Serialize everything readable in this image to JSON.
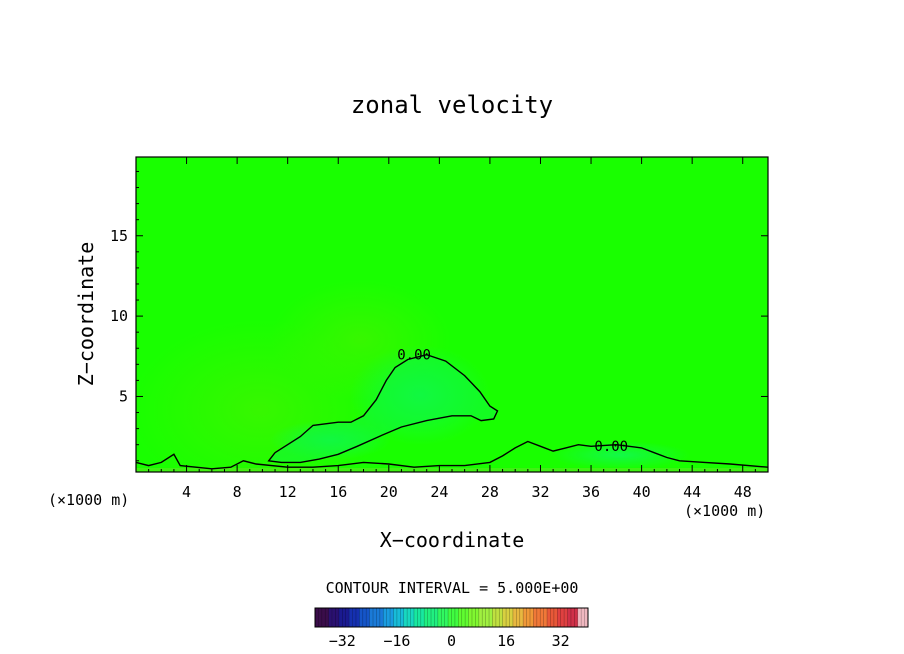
{
  "chart_data": {
    "type": "contour",
    "title": "zonal velocity",
    "xlabel": "X−coordinate",
    "ylabel": "Z−coordinate",
    "x_unit_left": "(×1000 m)",
    "x_unit_right": "(×1000 m)",
    "xlim": [
      0,
      50
    ],
    "ylim": [
      0.3,
      19.9
    ],
    "x_ticks": [
      4,
      8,
      12,
      16,
      20,
      24,
      28,
      32,
      36,
      40,
      44,
      48
    ],
    "x_tick_labels": [
      "4",
      "8",
      "12",
      "16",
      "20",
      "24",
      "28",
      "32",
      "36",
      "40",
      "44",
      "48"
    ],
    "y_ticks": [
      5,
      10,
      15
    ],
    "y_tick_labels": [
      "5",
      "10",
      "15"
    ],
    "contour_interval_text": "CONTOUR INTERVAL = 5.000E+00",
    "contour_labels": [
      {
        "text": "0.00",
        "x": 22,
        "z": 7.3
      },
      {
        "text": "0.00",
        "x": 37.6,
        "z": 1.6
      }
    ],
    "zero_contour_upper": [
      [
        11,
        1.5
      ],
      [
        13,
        2.5
      ],
      [
        14,
        3.2
      ],
      [
        16,
        3.4
      ],
      [
        17,
        3.4
      ],
      [
        18,
        3.8
      ],
      [
        19,
        4.8
      ],
      [
        19.8,
        6.0
      ],
      [
        20.5,
        6.8
      ],
      [
        21.5,
        7.3
      ],
      [
        23,
        7.6
      ],
      [
        24.5,
        7.2
      ],
      [
        26,
        6.3
      ],
      [
        27.2,
        5.3
      ],
      [
        28,
        4.4
      ],
      [
        28.6,
        4.1
      ],
      [
        28.3,
        3.6
      ],
      [
        27.3,
        3.5
      ],
      [
        26.5,
        3.8
      ],
      [
        25,
        3.8
      ],
      [
        23,
        3.5
      ],
      [
        21,
        3.1
      ],
      [
        19.5,
        2.6
      ],
      [
        17.5,
        1.9
      ],
      [
        16,
        1.4
      ],
      [
        14.5,
        1.1
      ],
      [
        13,
        0.9
      ],
      [
        11.5,
        0.9
      ],
      [
        10.5,
        1.0
      ],
      [
        11,
        1.5
      ]
    ],
    "zero_contour_lower": [
      [
        0,
        0.9
      ],
      [
        1,
        0.7
      ],
      [
        2,
        0.9
      ],
      [
        3,
        1.4
      ],
      [
        3.5,
        0.7
      ],
      [
        6,
        0.5
      ],
      [
        7.5,
        0.6
      ],
      [
        8.5,
        1.0
      ],
      [
        9.5,
        0.8
      ],
      [
        12,
        0.6
      ],
      [
        14,
        0.6
      ],
      [
        16,
        0.7
      ],
      [
        18,
        0.9
      ],
      [
        20,
        0.8
      ],
      [
        22,
        0.6
      ],
      [
        24,
        0.7
      ],
      [
        26,
        0.7
      ],
      [
        28,
        0.9
      ],
      [
        29,
        1.3
      ],
      [
        30,
        1.8
      ],
      [
        31,
        2.2
      ],
      [
        32,
        1.9
      ],
      [
        33,
        1.6
      ],
      [
        34,
        1.8
      ],
      [
        35,
        2.0
      ],
      [
        36,
        1.9
      ],
      [
        38,
        2.0
      ],
      [
        40,
        1.8
      ],
      [
        41,
        1.5
      ],
      [
        42,
        1.2
      ],
      [
        43,
        1.0
      ],
      [
        45,
        0.9
      ],
      [
        47,
        0.8
      ],
      [
        50,
        0.6
      ]
    ],
    "colorbar": {
      "tick_values": [
        -32,
        -16,
        0,
        16,
        32
      ],
      "tick_labels": [
        "−32",
        "−16",
        "0",
        "16",
        "32"
      ],
      "range": [
        -40,
        40
      ],
      "colors": [
        "#3a0d4a",
        "#2a1070",
        "#1a1a90",
        "#1530b0",
        "#1555c8",
        "#1a7ad8",
        "#1a9ce0",
        "#18bcd8",
        "#18d8c0",
        "#18e8a0",
        "#20f080",
        "#30f860",
        "#40fc40",
        "#60fc30",
        "#80f830",
        "#a0f040",
        "#c0e040",
        "#d8d040",
        "#e8b840",
        "#f09838",
        "#f07838",
        "#e85838",
        "#e04040",
        "#d03048",
        "#f0b8c0"
      ]
    },
    "field_colors": {
      "background": "#19ff00",
      "zero_region": "#10f83c",
      "near_ground": "#8ad83a"
    }
  }
}
